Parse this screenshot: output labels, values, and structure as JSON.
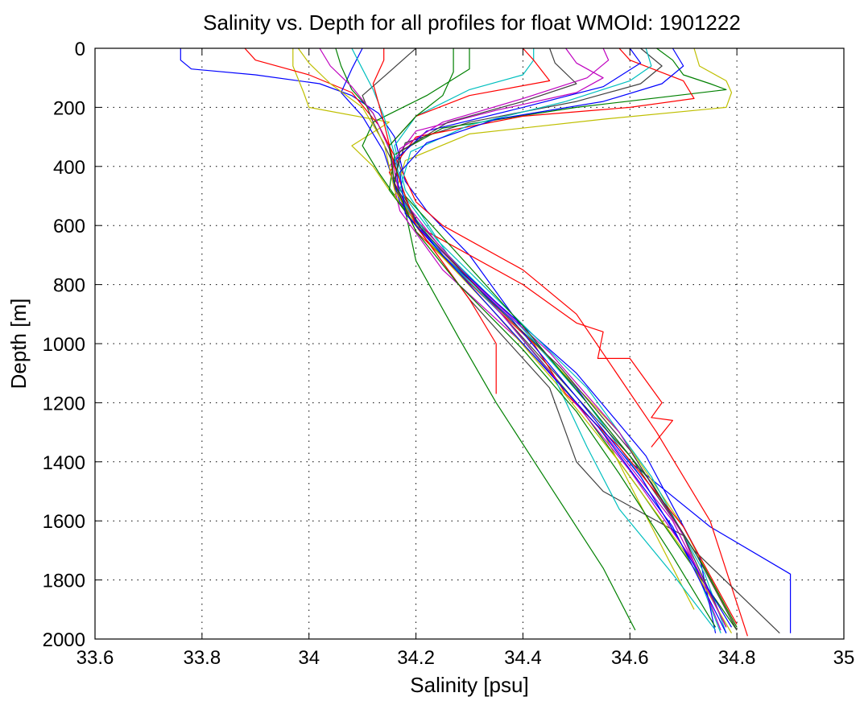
{
  "chart_data": {
    "type": "line",
    "title": "Salinity vs. Depth for all profiles for float WMOId: 1901222",
    "xlabel": "Salinity [psu]",
    "ylabel": "Depth [m]",
    "xlim": [
      33.6,
      35.0
    ],
    "ylim": [
      0,
      2000
    ],
    "y_reversed": true,
    "grid": true,
    "x_ticks": [
      33.6,
      33.8,
      34.0,
      34.2,
      34.4,
      34.6,
      34.8,
      35.0
    ],
    "x_tick_labels": [
      "33.6",
      "33.8",
      "34",
      "34.2",
      "34.4",
      "34.6",
      "34.8",
      "35"
    ],
    "y_ticks": [
      0,
      200,
      400,
      600,
      800,
      1000,
      1200,
      1400,
      1600,
      1800,
      2000
    ],
    "y_tick_labels": [
      "0",
      "200",
      "400",
      "600",
      "800",
      "1000",
      "1200",
      "1400",
      "1600",
      "1800",
      "2000"
    ],
    "colors": [
      "#0000ff",
      "#008000",
      "#ff0000",
      "#00bfbf",
      "#bf00bf",
      "#bfbf00",
      "#404040"
    ],
    "series": [
      {
        "color": "#0000ff",
        "x": [
          33.76,
          33.76,
          33.78,
          33.9,
          34.02,
          34.08,
          34.13,
          34.16,
          34.18,
          34.22,
          34.3,
          34.4,
          34.5,
          34.6,
          34.75,
          34.9,
          34.9
        ],
        "y": [
          0,
          40,
          70,
          90,
          120,
          160,
          220,
          300,
          450,
          550,
          700,
          950,
          1150,
          1400,
          1620,
          1780,
          1980
        ]
      },
      {
        "color": "#bfbf00",
        "x": [
          33.97,
          33.97,
          33.99,
          34.0,
          34.15,
          34.08,
          34.12,
          34.15,
          34.2,
          34.32,
          34.45,
          34.58,
          34.7,
          34.8
        ],
        "y": [
          0,
          60,
          150,
          200,
          250,
          330,
          400,
          480,
          600,
          820,
          1050,
          1300,
          1620,
          1970
        ]
      },
      {
        "color": "#ff0000",
        "x": [
          33.88,
          33.9,
          34.0,
          34.08,
          34.13,
          34.17,
          34.2,
          34.25,
          34.4,
          34.5,
          34.65,
          34.75,
          34.82
        ],
        "y": [
          0,
          40,
          90,
          150,
          260,
          400,
          520,
          600,
          750,
          900,
          1300,
          1600,
          1990
        ]
      },
      {
        "color": "#008000",
        "x": [
          34.3,
          34.3,
          34.22,
          34.12,
          34.1,
          34.13,
          34.18,
          34.2,
          34.28,
          34.35,
          34.45,
          34.55,
          34.61
        ],
        "y": [
          0,
          70,
          160,
          250,
          330,
          420,
          550,
          720,
          980,
          1200,
          1480,
          1760,
          1970
        ]
      },
      {
        "color": "#00bfbf",
        "x": [
          34.42,
          34.42,
          34.4,
          34.3,
          34.2,
          34.16,
          34.18,
          34.26,
          34.4,
          34.52,
          34.62,
          34.72,
          34.77
        ],
        "y": [
          0,
          40,
          90,
          140,
          230,
          330,
          480,
          700,
          950,
          1200,
          1450,
          1750,
          1980
        ]
      },
      {
        "color": "#bf00bf",
        "x": [
          34.48,
          34.5,
          34.55,
          34.5,
          34.35,
          34.2,
          34.15,
          34.17,
          34.25,
          34.4,
          34.55,
          34.68,
          34.78
        ],
        "y": [
          0,
          50,
          100,
          150,
          210,
          280,
          400,
          550,
          750,
          1000,
          1300,
          1600,
          1960
        ]
      },
      {
        "color": "#404040",
        "x": [
          34.62,
          34.66,
          34.62,
          34.5,
          34.3,
          34.18,
          34.16,
          34.2,
          34.32,
          34.45,
          34.6,
          34.72,
          34.88
        ],
        "y": [
          0,
          60,
          120,
          180,
          250,
          320,
          440,
          580,
          820,
          1080,
          1380,
          1700,
          1980
        ]
      },
      {
        "color": "#008000",
        "x": [
          34.65,
          34.68,
          34.7,
          34.75,
          34.78,
          34.5,
          34.25,
          34.16,
          34.15,
          34.22,
          34.36,
          34.5,
          34.62,
          34.8
        ],
        "y": [
          0,
          40,
          90,
          120,
          140,
          200,
          270,
          360,
          480,
          650,
          900,
          1200,
          1500,
          1970
        ]
      },
      {
        "color": "#bfbf00",
        "x": [
          34.72,
          34.73,
          34.78,
          34.79,
          34.78,
          34.55,
          34.3,
          34.18,
          34.16,
          34.25,
          34.4,
          34.55,
          34.72
        ],
        "y": [
          0,
          60,
          110,
          150,
          200,
          240,
          290,
          380,
          500,
          700,
          1000,
          1300,
          1900
        ]
      },
      {
        "color": "#ff0000",
        "x": [
          34.58,
          34.6,
          34.7,
          34.72,
          34.6,
          34.4,
          34.2,
          34.15,
          34.2,
          34.4,
          34.5,
          34.55,
          34.54,
          34.6,
          34.66,
          34.64,
          34.68,
          34.64
        ],
        "y": [
          0,
          40,
          110,
          170,
          200,
          230,
          300,
          420,
          600,
          800,
          930,
          960,
          1050,
          1050,
          1200,
          1250,
          1260,
          1350
        ]
      },
      {
        "color": "#0000ff",
        "x": [
          34.6,
          34.62,
          34.55,
          34.4,
          34.22,
          34.16,
          34.17,
          34.22,
          34.35,
          34.5,
          34.63,
          34.73,
          34.76
        ],
        "y": [
          0,
          50,
          130,
          200,
          280,
          380,
          500,
          640,
          860,
          1100,
          1380,
          1720,
          1980
        ]
      },
      {
        "color": "#00bfbf",
        "x": [
          34.63,
          34.64,
          34.6,
          34.48,
          34.3,
          34.19,
          34.17,
          34.24,
          34.38,
          34.52,
          34.64,
          34.74,
          34.78
        ],
        "y": [
          0,
          60,
          110,
          180,
          260,
          350,
          480,
          650,
          900,
          1150,
          1450,
          1780,
          1980
        ]
      },
      {
        "color": "#bf00bf",
        "x": [
          34.55,
          34.56,
          34.52,
          34.4,
          34.25,
          34.17,
          34.16,
          34.2,
          34.3,
          34.45,
          34.58,
          34.7,
          34.77
        ],
        "y": [
          0,
          40,
          100,
          170,
          250,
          340,
          460,
          600,
          780,
          1030,
          1300,
          1650,
          1970
        ]
      },
      {
        "color": "#ff0000",
        "x": [
          34.4,
          34.42,
          34.45,
          34.3,
          34.2,
          34.15,
          34.16,
          34.2,
          34.32,
          34.42,
          34.48,
          34.58,
          34.7,
          34.8
        ],
        "y": [
          0,
          40,
          110,
          160,
          230,
          330,
          470,
          620,
          830,
          1000,
          1170,
          1350,
          1620,
          1950
        ]
      },
      {
        "color": "#404040",
        "x": [
          34.2,
          34.15,
          34.1,
          34.12,
          34.16,
          34.2,
          34.3,
          34.45,
          34.5,
          34.55,
          34.7,
          34.78
        ],
        "y": [
          0,
          80,
          160,
          250,
          400,
          600,
          850,
          1150,
          1400,
          1500,
          1650,
          1960
        ]
      },
      {
        "color": "#0000ff",
        "x": [
          34.1,
          34.08,
          34.06,
          34.1,
          34.14,
          34.17,
          34.25,
          34.38,
          34.5,
          34.62,
          34.72,
          34.79
        ],
        "y": [
          0,
          70,
          150,
          230,
          350,
          520,
          700,
          920,
          1180,
          1450,
          1750,
          1960
        ]
      },
      {
        "color": "#008000",
        "x": [
          34.05,
          34.06,
          34.08,
          34.12,
          34.15,
          34.18,
          34.28,
          34.4,
          34.52,
          34.64,
          34.74,
          34.8
        ],
        "y": [
          0,
          60,
          140,
          220,
          340,
          500,
          700,
          940,
          1200,
          1470,
          1760,
          1960
        ]
      },
      {
        "color": "#bfbf00",
        "x": [
          33.98,
          34.0,
          34.04,
          34.1,
          34.14,
          34.16,
          34.22,
          34.34,
          34.46,
          34.58,
          34.7,
          34.79
        ],
        "y": [
          0,
          50,
          120,
          200,
          320,
          480,
          650,
          880,
          1130,
          1400,
          1700,
          1980
        ]
      },
      {
        "color": "#00bfbf",
        "x": [
          34.08,
          34.1,
          34.12,
          34.14,
          34.16,
          34.18,
          34.25,
          34.36,
          34.46,
          34.52,
          34.58,
          34.68,
          34.76
        ],
        "y": [
          0,
          70,
          140,
          230,
          360,
          530,
          700,
          900,
          1120,
          1350,
          1560,
          1780,
          1970
        ]
      },
      {
        "color": "#bf00bf",
        "x": [
          34.02,
          34.04,
          34.08,
          34.12,
          34.15,
          34.17,
          34.24,
          34.36,
          34.48,
          34.6,
          34.72,
          34.78
        ],
        "y": [
          0,
          60,
          130,
          220,
          340,
          500,
          660,
          900,
          1160,
          1430,
          1740,
          1960
        ]
      },
      {
        "color": "#ff0000",
        "x": [
          34.14,
          34.14,
          34.12,
          34.14,
          34.16,
          34.2,
          34.3,
          34.35,
          34.35
        ],
        "y": [
          0,
          40,
          120,
          250,
          400,
          600,
          850,
          1000,
          1170
        ]
      },
      {
        "color": "#008000",
        "x": [
          34.27,
          34.27,
          34.25,
          34.2,
          34.15,
          34.16,
          34.2,
          34.28,
          34.4,
          34.5,
          34.58,
          34.68,
          34.76
        ],
        "y": [
          0,
          80,
          160,
          230,
          330,
          460,
          620,
          800,
          1020,
          1230,
          1440,
          1720,
          1960
        ]
      },
      {
        "color": "#404040",
        "x": [
          34.45,
          34.46,
          34.5,
          34.4,
          34.26,
          34.17,
          34.16,
          34.21,
          34.33,
          34.47,
          34.6,
          34.72,
          34.8
        ],
        "y": [
          0,
          50,
          120,
          180,
          250,
          350,
          460,
          610,
          840,
          1080,
          1360,
          1700,
          1970
        ]
      },
      {
        "color": "#0000ff",
        "x": [
          34.68,
          34.7,
          34.66,
          34.55,
          34.35,
          34.22,
          34.17,
          34.18,
          34.28,
          34.4,
          34.54,
          34.68,
          34.78
        ],
        "y": [
          0,
          60,
          120,
          180,
          240,
          320,
          420,
          560,
          760,
          1000,
          1280,
          1620,
          1980
        ]
      }
    ]
  }
}
